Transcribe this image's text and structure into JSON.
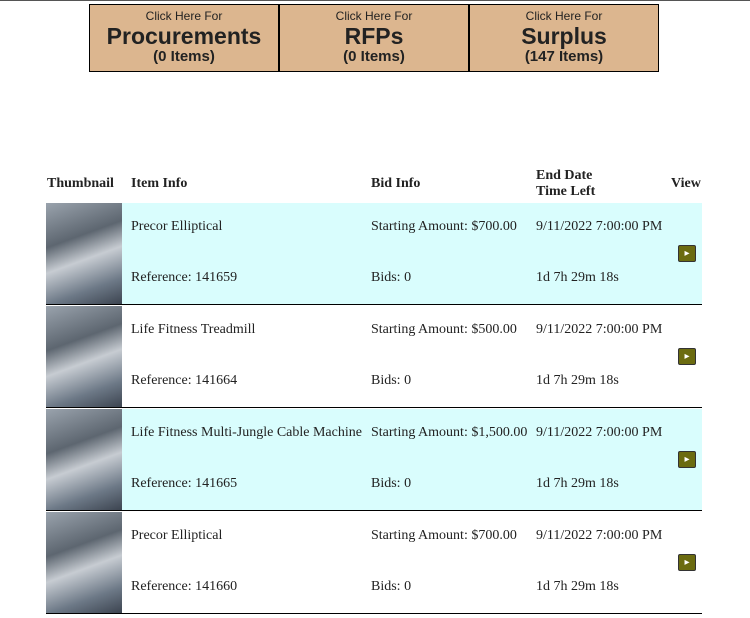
{
  "header": {
    "buttons": [
      {
        "prefix": "Click Here For",
        "title": "Procurements",
        "count": "(0 Items)"
      },
      {
        "prefix": "Click Here For",
        "title": "RFPs",
        "count": "(0 Items)"
      },
      {
        "prefix": "Click Here For",
        "title": "Surplus",
        "count": "(147 Items)"
      }
    ]
  },
  "table": {
    "columns": [
      "Thumbnail",
      "Item Info",
      "Bid Info",
      "End Date",
      "Time Left",
      "View"
    ],
    "rows": [
      {
        "title": "Precor Elliptical",
        "reference": "Reference: 141659",
        "starting": "Starting Amount: $700.00",
        "bids": "Bids: 0",
        "end_date": "9/11/2022 7:00:00 PM",
        "time_left": "1d 7h 29m 18s"
      },
      {
        "title": "Life Fitness Treadmill",
        "reference": "Reference: 141664",
        "starting": "Starting Amount: $500.00",
        "bids": "Bids: 0",
        "end_date": "9/11/2022 7:00:00 PM",
        "time_left": "1d 7h 29m 18s"
      },
      {
        "title": "Life Fitness Multi-Jungle Cable Machine",
        "reference": "Reference: 141665",
        "starting": "Starting Amount: $1,500.00",
        "bids": "Bids: 0",
        "end_date": "9/11/2022 7:00:00 PM",
        "time_left": "1d 7h 29m 18s"
      },
      {
        "title": "Precor Elliptical",
        "reference": "Reference: 141660",
        "starting": "Starting Amount: $700.00",
        "bids": "Bids: 0",
        "end_date": "9/11/2022 7:00:00 PM",
        "time_left": "1d 7h 29m 18s"
      }
    ]
  }
}
